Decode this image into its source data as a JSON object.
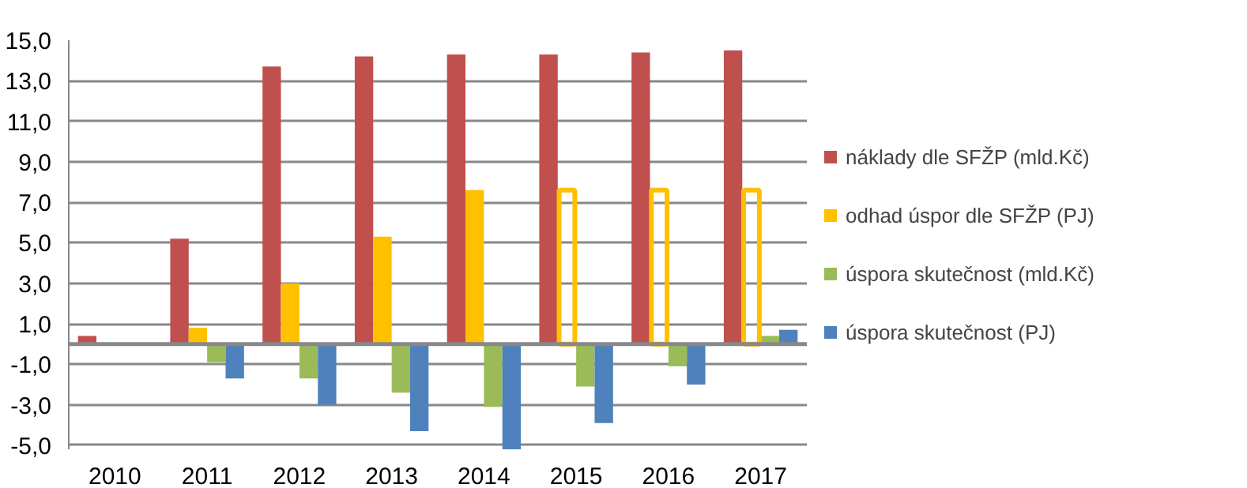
{
  "chart_data": {
    "type": "bar",
    "categories": [
      "2010",
      "2011",
      "2012",
      "2013",
      "2014",
      "2015",
      "2016",
      "2017"
    ],
    "series": [
      {
        "name": "náklady dle SFŽP (mld.Kč)",
        "color": "#c0504d",
        "values": [
          0.4,
          5.2,
          13.7,
          14.2,
          14.3,
          14.3,
          14.4,
          14.5
        ]
      },
      {
        "name": "odhad úspor dle SFŽP (PJ)",
        "color": "#ffc000",
        "values": [
          null,
          0.8,
          3.0,
          5.3,
          7.6,
          null,
          null,
          null
        ]
      },
      {
        "name": "úspora skutečnost (mld.Kč)",
        "color": "#9bbb59",
        "values": [
          null,
          -0.9,
          -1.7,
          -2.4,
          -3.1,
          -2.1,
          -1.1,
          0.4
        ]
      },
      {
        "name": "úspora skutečnost (PJ)",
        "color": "#4f81bd",
        "values": [
          null,
          -1.7,
          -3.0,
          -4.3,
          -5.2,
          -3.9,
          -2.0,
          0.7
        ]
      },
      {
        "color": "#ffc000",
        "line_style": "solid",
        "values": [
          null,
          null,
          null,
          null,
          null,
          7.6,
          7.6,
          7.6
        ]
      }
    ],
    "ylim": [
      -5.2,
      15
    ],
    "yticks": [
      {
        "value": -5,
        "label": "-5,0"
      },
      {
        "value": -3,
        "label": "-3,0"
      },
      {
        "value": -1,
        "label": "-1,0"
      },
      {
        "value": 1,
        "label": "1,0"
      },
      {
        "value": 3,
        "label": "3,0"
      },
      {
        "value": 5,
        "label": "5,0"
      },
      {
        "value": 7,
        "label": "7,0"
      },
      {
        "value": 9,
        "label": "9,0"
      },
      {
        "value": 11,
        "label": "11,0"
      },
      {
        "value": 13,
        "label": "13,0"
      },
      {
        "value": 15,
        "label": "15,0"
      }
    ],
    "grid": "y",
    "legend": "right"
  }
}
